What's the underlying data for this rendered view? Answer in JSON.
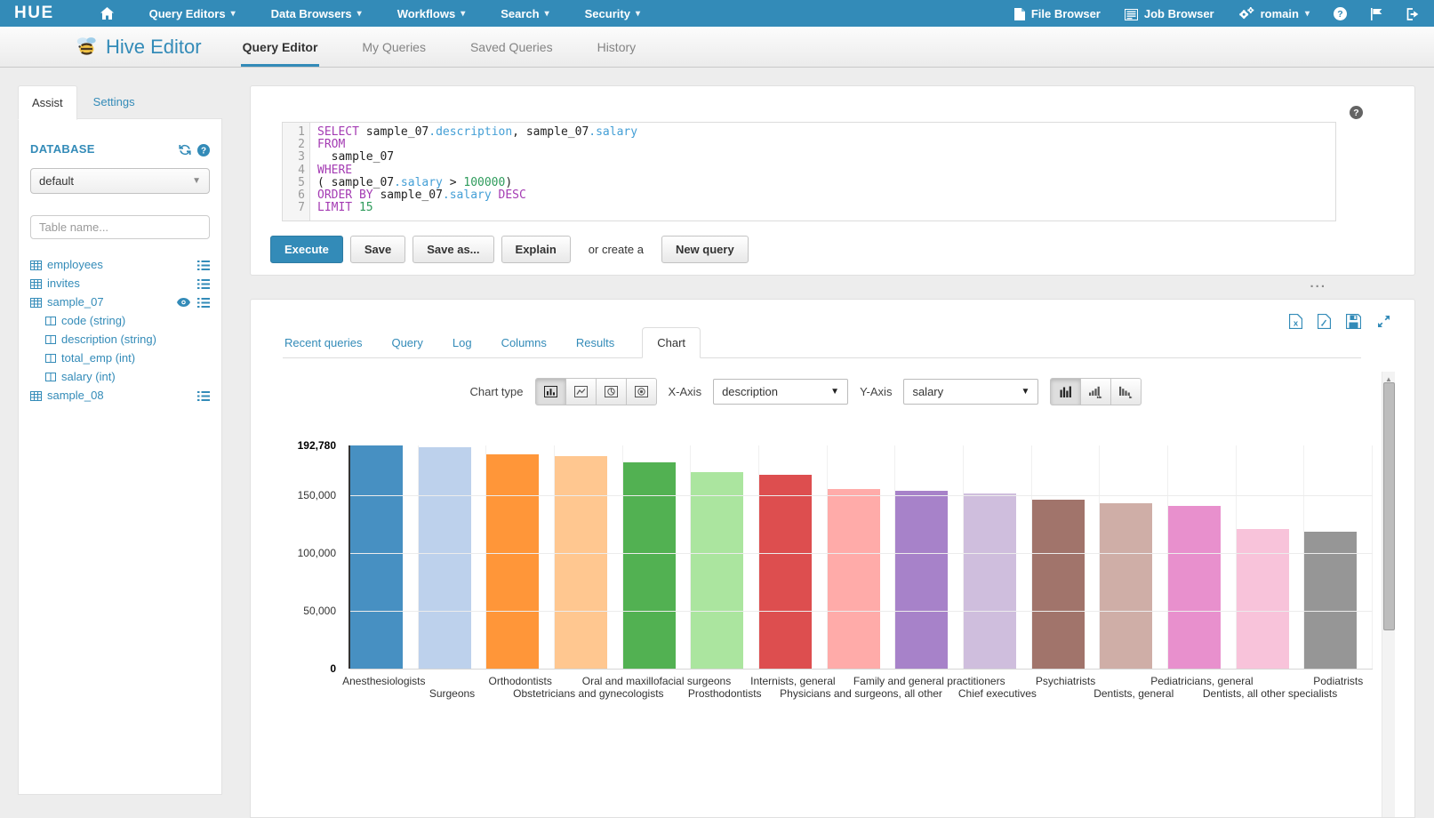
{
  "colors": {
    "accent": "#338bb8",
    "keyword": "#a43bb3",
    "attribute": "#449fd6",
    "number": "#2e9b5b"
  },
  "topnav": {
    "brand": "HUE",
    "menus": [
      {
        "label": "Query Editors"
      },
      {
        "label": "Data Browsers"
      },
      {
        "label": "Workflows"
      },
      {
        "label": "Search"
      },
      {
        "label": "Security"
      }
    ],
    "file_browser": "File Browser",
    "job_browser": "Job Browser",
    "user": "romain"
  },
  "subnav": {
    "app_title": "Hive Editor",
    "tabs": [
      {
        "label": "Query Editor",
        "active": true
      },
      {
        "label": "My Queries",
        "active": false
      },
      {
        "label": "Saved Queries",
        "active": false
      },
      {
        "label": "History",
        "active": false
      }
    ]
  },
  "sidebar": {
    "tabs": [
      {
        "label": "Assist",
        "active": true
      },
      {
        "label": "Settings",
        "active": false
      }
    ],
    "database_label": "DATABASE",
    "database_value": "default",
    "table_filter_placeholder": "Table name...",
    "tables": [
      {
        "name": "employees",
        "menu": true,
        "eye": false,
        "columns": []
      },
      {
        "name": "invites",
        "menu": true,
        "eye": false,
        "columns": []
      },
      {
        "name": "sample_07",
        "menu": true,
        "eye": true,
        "columns": [
          {
            "name": "code",
            "type": "string"
          },
          {
            "name": "description",
            "type": "string"
          },
          {
            "name": "total_emp",
            "type": "int"
          },
          {
            "name": "salary",
            "type": "int"
          }
        ]
      },
      {
        "name": "sample_08",
        "menu": true,
        "eye": false,
        "columns": []
      }
    ]
  },
  "editor": {
    "lines": [
      [
        [
          "kw",
          "SELECT"
        ],
        [
          "pl",
          " sample_07"
        ],
        [
          "at",
          ".description"
        ],
        [
          "pl",
          ", sample_07"
        ],
        [
          "at",
          ".salary"
        ]
      ],
      [
        [
          "kw",
          "FROM"
        ]
      ],
      [
        [
          "pl",
          "  sample_07"
        ]
      ],
      [
        [
          "kw",
          "WHERE"
        ]
      ],
      [
        [
          "pl",
          "( sample_07"
        ],
        [
          "at",
          ".salary"
        ],
        [
          "pl",
          " > "
        ],
        [
          "num",
          "100000"
        ],
        [
          "pl",
          ")"
        ]
      ],
      [
        [
          "kw",
          "ORDER BY"
        ],
        [
          "pl",
          " sample_07"
        ],
        [
          "at",
          ".salary"
        ],
        [
          "kw",
          " DESC"
        ]
      ],
      [
        [
          "kw",
          "LIMIT"
        ],
        [
          "num",
          " 15"
        ]
      ]
    ]
  },
  "actions": {
    "execute": "Execute",
    "save": "Save",
    "save_as": "Save as...",
    "explain": "Explain",
    "or_create": "or create a",
    "new_query": "New query"
  },
  "results": {
    "tabs": [
      {
        "label": "Recent queries",
        "active": false
      },
      {
        "label": "Query",
        "active": false
      },
      {
        "label": "Log",
        "active": false
      },
      {
        "label": "Columns",
        "active": false
      },
      {
        "label": "Results",
        "active": false
      },
      {
        "label": "Chart",
        "active": true
      }
    ]
  },
  "chart_controls": {
    "chart_type_label": "Chart type",
    "x_axis_label": "X-Axis",
    "x_axis_value": "description",
    "y_axis_label": "Y-Axis",
    "y_axis_value": "salary"
  },
  "chart_data": {
    "type": "bar",
    "title": "",
    "xlabel": "description",
    "ylabel": "salary",
    "ylim": [
      0,
      192780
    ],
    "grid": true,
    "legend": "none",
    "categories": [
      "Anesthesiologists",
      "Surgeons",
      "Orthodontists",
      "Obstetricians and gynecologists",
      "Oral and maxillofacial surgeons",
      "Prosthodontists",
      "Internists, general",
      "Physicians and surgeons, all other",
      "Family and general practitioners",
      "Chief executives",
      "Psychiatrists",
      "Dentists, general",
      "Pediatricians, general",
      "Dentists, all other specialists",
      "Podiatrists"
    ],
    "values": [
      192780,
      191410,
      185340,
      183600,
      178440,
      169810,
      167270,
      155150,
      153640,
      151370,
      146150,
      142870,
      140690,
      120360,
      118500
    ],
    "colors": [
      "#1f77b4",
      "#aec7e8",
      "#ff7f0e",
      "#ffbb78",
      "#2ca02c",
      "#98df8a",
      "#d62728",
      "#ff9896",
      "#9467bd",
      "#c5b0d5",
      "#8c564b",
      "#c49c94",
      "#e377c2",
      "#f7b6d2",
      "#7f7f7f"
    ],
    "y_ticks": [
      {
        "label": "192,780",
        "value": 192780,
        "bold": true
      },
      {
        "label": "150,000",
        "value": 150000,
        "bold": false
      },
      {
        "label": "100,000",
        "value": 100000,
        "bold": false
      },
      {
        "label": "50,000",
        "value": 50000,
        "bold": false
      },
      {
        "label": "0",
        "value": 0,
        "bold": true
      }
    ]
  }
}
